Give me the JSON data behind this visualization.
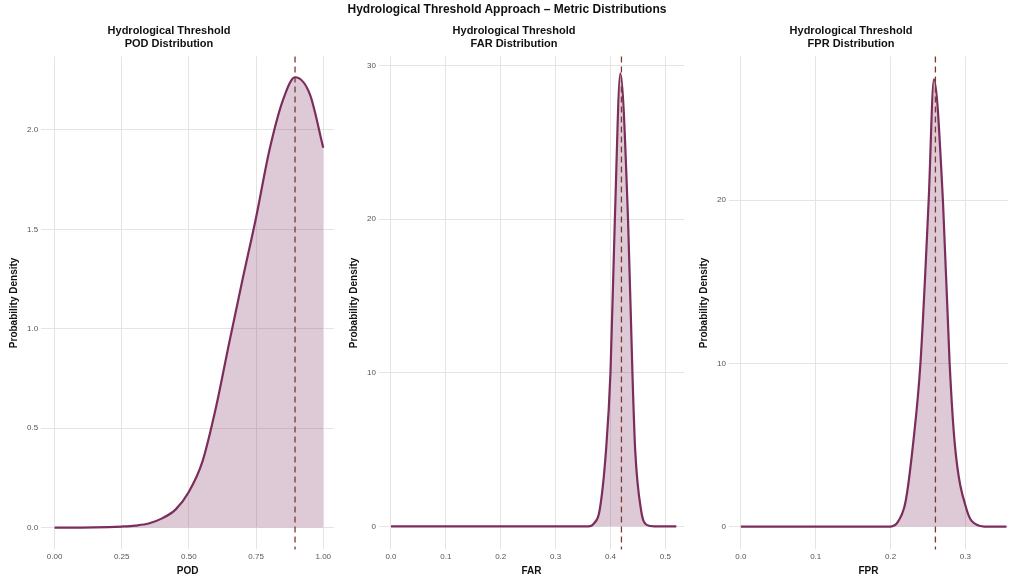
{
  "chart_data": [
    {
      "type": "other",
      "title": "Hydrological Threshold Approach – Metric Distributions"
    },
    {
      "type": "area",
      "title": "Hydrological Threshold",
      "subtitle": "POD Distribution",
      "xlabel": "POD",
      "ylabel": "Probability Density",
      "x": [
        0,
        0.1,
        0.2,
        0.25,
        0.3,
        0.35,
        0.4,
        0.45,
        0.5,
        0.55,
        0.6,
        0.65,
        0.7,
        0.75,
        0.8,
        0.85,
        0.895,
        0.95,
        1.0
      ],
      "series": [
        {
          "color": "#7b2d5b",
          "values": [
            0,
            0,
            0.002,
            0.005,
            0.01,
            0.02,
            0.046,
            0.09,
            0.18,
            0.33,
            0.6,
            0.93,
            1.25,
            1.56,
            1.9,
            2.15,
            2.265,
            2.18,
            1.91
          ]
        }
      ],
      "xlim": [
        -0.05,
        1.04
      ],
      "ylim": [
        -0.11,
        2.37
      ],
      "xticks": [
        {
          "value": 0,
          "label": "0.00"
        },
        {
          "value": 0.25,
          "label": "0.25"
        },
        {
          "value": 0.5,
          "label": "0.50"
        },
        {
          "value": 0.75,
          "label": "0.75"
        },
        {
          "value": 1,
          "label": "1.00"
        }
      ],
      "yticks": [
        {
          "value": 0,
          "label": "0.0"
        },
        {
          "value": 0.5,
          "label": "0.5"
        },
        {
          "value": 1,
          "label": "1.0"
        },
        {
          "value": 1.5,
          "label": "1.5"
        },
        {
          "value": 2,
          "label": "2.0"
        }
      ],
      "grid": true,
      "ref_lines": [
        {
          "axis": "x",
          "value": 0.895,
          "color": "#7a3b2e",
          "line_style": "dashed"
        }
      ]
    },
    {
      "type": "area",
      "title": "Hydrological Threshold",
      "subtitle": "FAR Distribution",
      "xlabel": "FAR",
      "ylabel": "Probability Density",
      "x": [
        0,
        0.1,
        0.2,
        0.3,
        0.36,
        0.37,
        0.38,
        0.392,
        0.4,
        0.408,
        0.418,
        0.432,
        0.44,
        0.445,
        0.456,
        0.466,
        0.48,
        0.52
      ],
      "series": [
        {
          "color": "#7b2d5b",
          "values": [
            0,
            0,
            0,
            0,
            0,
            0.2,
            1,
            5,
            10,
            20,
            29.5,
            20,
            10,
            5,
            1,
            0.1,
            0,
            0
          ]
        }
      ],
      "xlim": [
        -0.022,
        0.534
      ],
      "ylim": [
        -1.5,
        30.6
      ],
      "xticks": [
        {
          "value": 0,
          "label": "0.0"
        },
        {
          "value": 0.1,
          "label": "0.1"
        },
        {
          "value": 0.2,
          "label": "0.2"
        },
        {
          "value": 0.3,
          "label": "0.3"
        },
        {
          "value": 0.4,
          "label": "0.4"
        },
        {
          "value": 0.5,
          "label": "0.5"
        }
      ],
      "yticks": [
        0,
        10,
        20,
        30
      ],
      "grid": true,
      "ref_lines": [
        {
          "axis": "x",
          "value": 0.42,
          "color": "#7a3b2e",
          "line_style": "dashed"
        }
      ]
    },
    {
      "type": "area",
      "title": "Hydrological Threshold",
      "subtitle": "FPR Distribution",
      "xlabel": "FPR",
      "ylabel": "Probability Density",
      "x": [
        0,
        0.1,
        0.2,
        0.21,
        0.22,
        0.23,
        0.24,
        0.251,
        0.258,
        0.27,
        0.279,
        0.286,
        0.302,
        0.316,
        0.33,
        0.355
      ],
      "series": [
        {
          "color": "#7b2d5b",
          "values": [
            0,
            0,
            0,
            0.3,
            1.5,
            5,
            10,
            20,
            27.4,
            20,
            10,
            5,
            1,
            0.1,
            0,
            0
          ]
        }
      ],
      "xlim": [
        -0.016,
        0.357
      ],
      "ylim": [
        -1.4,
        28.8
      ],
      "xticks": [
        {
          "value": 0,
          "label": "0.0"
        },
        {
          "value": 0.1,
          "label": "0.1"
        },
        {
          "value": 0.2,
          "label": "0.2"
        },
        {
          "value": 0.3,
          "label": "0.3"
        }
      ],
      "yticks": [
        0,
        10,
        20
      ],
      "grid": true,
      "ref_lines": [
        {
          "axis": "x",
          "value": 0.26,
          "color": "#7a3b2e",
          "line_style": "dashed"
        }
      ]
    }
  ]
}
